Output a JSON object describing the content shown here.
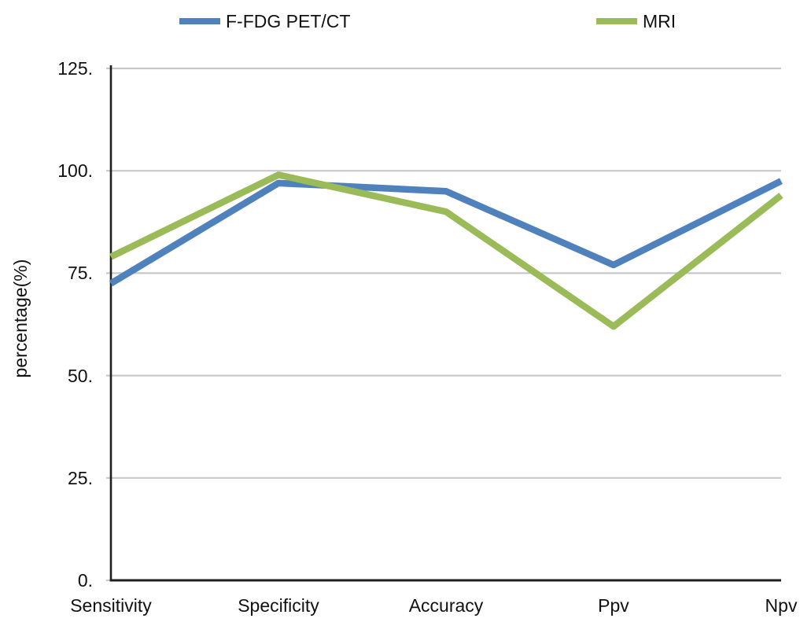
{
  "chart_data": {
    "type": "line",
    "title": "",
    "categories": [
      "Sensitivity",
      "Specificity",
      "Accuracy",
      "Ppv",
      "Npv"
    ],
    "series": [
      {
        "name": "F-FDG PET/CT",
        "color": "#4F81BD",
        "values": [
          72.5,
          97,
          95,
          77,
          97.5
        ]
      },
      {
        "name": "MRI",
        "color": "#9BBB59",
        "values": [
          79,
          99,
          90,
          62,
          94
        ]
      }
    ],
    "xlabel": "",
    "ylabel": "percentage(%)",
    "ylim": [
      0,
      125
    ],
    "yticks": [
      {
        "value": 0,
        "label": "0."
      },
      {
        "value": 25,
        "label": "25."
      },
      {
        "value": 50,
        "label": "50."
      },
      {
        "value": 75,
        "label": "75."
      },
      {
        "value": 100,
        "label": "100."
      },
      {
        "value": 125,
        "label": "125."
      }
    ],
    "grid": "horizontal",
    "legend_position": "top"
  },
  "colors": {
    "gridline": "#C8C8C8",
    "axis": "#1F1F1F",
    "text": "#111111",
    "background": "#FFFFFF"
  }
}
